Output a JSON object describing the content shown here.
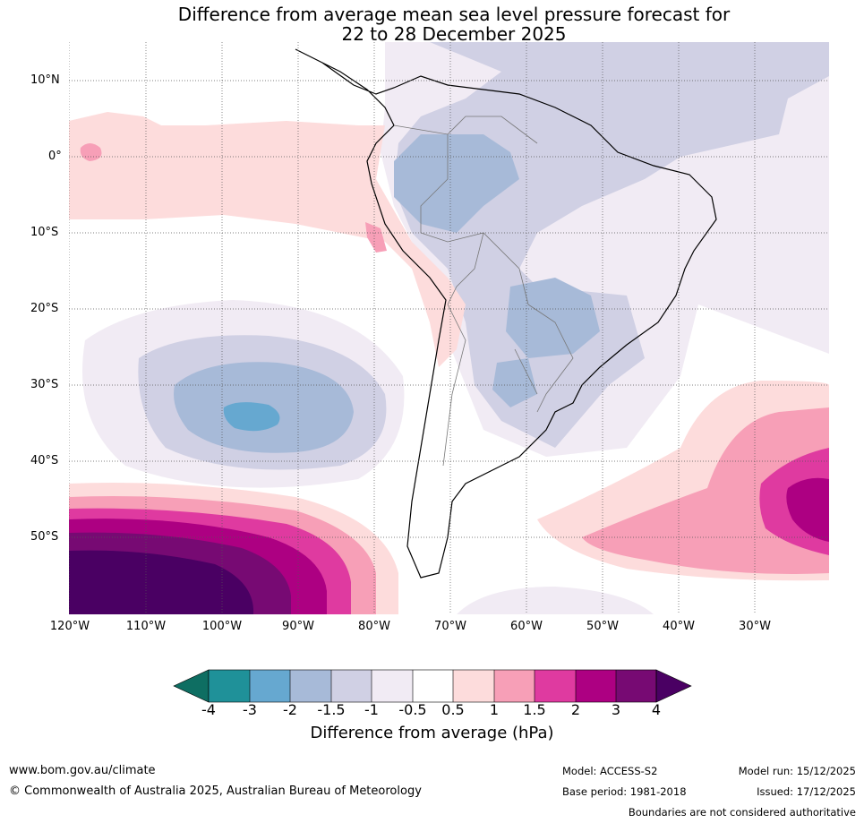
{
  "title_line1": "Difference from average mean sea level pressure forecast for",
  "title_line2": "22 to 28 December 2025",
  "map": {
    "lat_labels": [
      "10°N",
      "0°",
      "10°S",
      "20°S",
      "30°S",
      "40°S",
      "50°S"
    ],
    "lon_labels": [
      "120°W",
      "110°W",
      "100°W",
      "90°W",
      "80°W",
      "70°W",
      "60°W",
      "50°W",
      "40°W",
      "30°W"
    ],
    "anomaly_regions": [
      {
        "name": "south-pacific-high-anomaly",
        "max_hPa": 4
      },
      {
        "name": "south-atlantic-high-anomaly",
        "max_hPa": 3
      },
      {
        "name": "southeast-pacific-low-anomaly",
        "min_hPa": -3
      },
      {
        "name": "central-south-america-low-anomaly",
        "min_hPa": -3
      }
    ]
  },
  "colorbar": {
    "ticks": [
      "-4",
      "-3",
      "-2",
      "-1.5",
      "-1",
      "-0.5",
      "0.5",
      "1",
      "1.5",
      "2",
      "3",
      "4"
    ],
    "colors": [
      "#0e6e62",
      "#1f9199",
      "#66a8d0",
      "#a7bad8",
      "#d0d0e4",
      "#f1ebf4",
      "#ffffff",
      "#fddcdc",
      "#f79fb7",
      "#df3aa0",
      "#ad0082",
      "#770a73",
      "#4a0063"
    ],
    "label": "Difference from average (hPa)"
  },
  "footer": {
    "website": "www.bom.gov.au/climate",
    "copyright": "© Commonwealth of Australia 2025, Australian Bureau of Meteorology",
    "model": "Model: ACCESS-S2",
    "base_period": "Base period: 1981-2018",
    "model_run": "Model run: 15/12/2025",
    "issued": "Issued: 17/12/2025",
    "disclaimer": "Boundaries are not considered authoritative"
  }
}
